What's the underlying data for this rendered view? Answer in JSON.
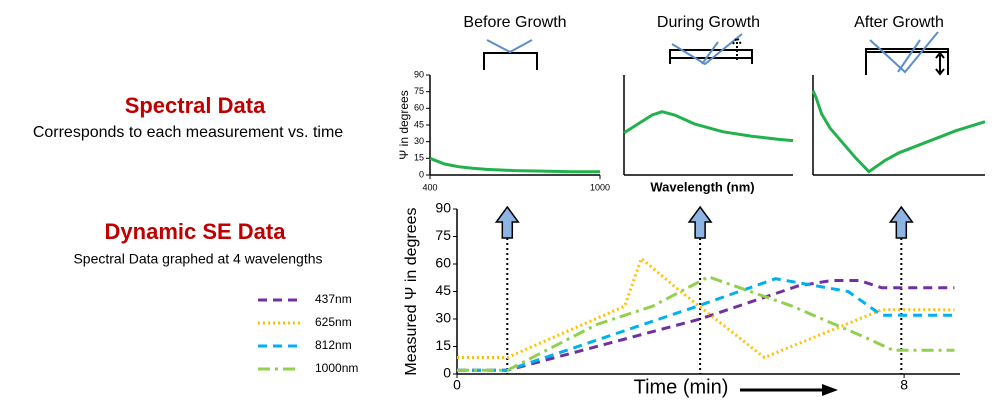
{
  "texts": {
    "spectral_title": "Spectral Data",
    "spectral_subtitle": "Corresponds to each measurement vs. time",
    "dynamic_title": "Dynamic SE Data",
    "dynamic_subtitle": "Spectral Data graphed at 4 wavelengths"
  },
  "chart_data": [
    {
      "type": "line",
      "title": "Before Growth",
      "ylabel": "Ψ in degrees",
      "color": "#22b14c",
      "x": [
        400,
        450,
        500,
        550,
        600,
        700,
        800,
        900,
        1000
      ],
      "values": [
        15,
        10,
        7.5,
        6,
        5,
        4,
        3.5,
        3,
        3
      ],
      "xlim": [
        400,
        1000
      ],
      "xticks": [
        400,
        1000
      ],
      "ylim": [
        0,
        90
      ],
      "yticks": [
        0,
        15,
        30,
        45,
        60,
        75,
        90
      ]
    },
    {
      "type": "line",
      "title": "During Growth",
      "xlabel": "Wavelength (nm)",
      "color": "#22b14c",
      "x": [
        400,
        450,
        500,
        535,
        580,
        650,
        750,
        850,
        950,
        1000
      ],
      "values": [
        38,
        46,
        54,
        57,
        54,
        46,
        39,
        35,
        32,
        31
      ],
      "xlim": [
        400,
        1000
      ],
      "ylim": [
        0,
        90
      ]
    },
    {
      "type": "line",
      "title": "After Growth",
      "color": "#22b14c",
      "x": [
        400,
        410,
        430,
        460,
        500,
        550,
        595,
        650,
        700,
        800,
        900,
        1000
      ],
      "values": [
        76,
        70,
        55,
        42,
        30,
        15,
        3,
        13,
        20,
        30,
        40,
        48
      ],
      "xlim": [
        400,
        1000
      ],
      "ylim": [
        0,
        90
      ]
    },
    {
      "type": "line",
      "xlabel": "Time (min)",
      "ylabel": "Measured Ψ in degrees",
      "xlim": [
        0,
        9
      ],
      "xticks": [
        0,
        8
      ],
      "ylim": [
        0,
        90
      ],
      "yticks": [
        0,
        15,
        30,
        45,
        60,
        75,
        90
      ],
      "markers": [
        0.9,
        4.35,
        7.95
      ],
      "series": [
        {
          "name": "437nm",
          "color": "#7030a0",
          "style": "dashed",
          "x": [
            0,
            0.9,
            4.35,
            6.1,
            6.7,
            7.2,
            7.6,
            8.9
          ],
          "values": [
            2,
            2,
            30,
            48,
            51,
            51,
            47,
            47
          ]
        },
        {
          "name": "625nm",
          "color": "#ffc000",
          "style": "dotted",
          "x": [
            0,
            0.9,
            3.0,
            3.3,
            4.0,
            5.5,
            7.6,
            8.9
          ],
          "values": [
            9,
            9,
            37,
            63,
            45,
            9,
            35,
            35
          ]
        },
        {
          "name": "812nm",
          "color": "#00b0f0",
          "style": "dashed",
          "x": [
            0,
            0.9,
            4.3,
            5.7,
            7.0,
            7.6,
            8.9
          ],
          "values": [
            2,
            2,
            37,
            52,
            45,
            32,
            32
          ]
        },
        {
          "name": "1000nm",
          "color": "#92d050",
          "style": "dashdot",
          "x": [
            0,
            0.9,
            2.5,
            3.5,
            4.5,
            6.0,
            7.3,
            7.8,
            8.9
          ],
          "values": [
            2,
            2,
            27,
            37,
            53,
            37,
            20,
            13,
            13
          ]
        }
      ]
    }
  ]
}
